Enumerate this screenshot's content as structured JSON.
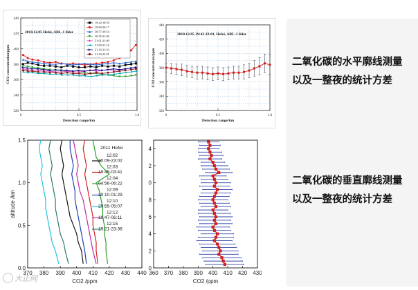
{
  "caption": {
    "top": [
      "二氧化碳的水平廓线测量",
      "以及一整夜的统计方差"
    ],
    "bottom": [
      "二氧化碳的垂直廓线测量",
      "以及一整夜的统计方差"
    ]
  },
  "watermark": "大正网",
  "chart_data": [
    {
      "type": "line",
      "title": "2010.12.05 Hefei, ARL-1 lidar",
      "xlabel": "Detection range/km",
      "ylabel": "CO2 concentration/ppm",
      "xlim": [
        0,
        1.0
      ],
      "ylim": [
        320,
        440
      ],
      "x_ticks": [
        "0",
        "0.5",
        "1.0"
      ],
      "y_ticks": [
        "320",
        "340",
        "360",
        "380",
        "400",
        "420",
        "440"
      ],
      "grid": true,
      "legend_position": "top-right",
      "series": [
        {
          "name": "19:42:18:59",
          "color": "#000000",
          "marker": "square",
          "x": [
            0.02,
            0.06,
            0.1,
            0.15,
            0.2,
            0.25,
            0.3,
            0.35,
            0.4,
            0.45,
            0.5,
            0.55,
            0.6,
            0.65,
            0.7,
            0.75,
            0.8,
            0.85,
            0.9,
            0.95,
            0.99
          ],
          "y": [
            380,
            382,
            381,
            379,
            378,
            378,
            377,
            376,
            378,
            377,
            376,
            376,
            377,
            376,
            378,
            377,
            378,
            377,
            379,
            380,
            381
          ]
        },
        {
          "name": "19:09:20:17",
          "color": "#e41a1c",
          "marker": "circle",
          "x": [
            0.02,
            0.06,
            0.1,
            0.15,
            0.2,
            0.25,
            0.3,
            0.35,
            0.4,
            0.45,
            0.5,
            0.55,
            0.6,
            0.65,
            0.7,
            0.75,
            0.8,
            0.85,
            0.9,
            0.95,
            0.99
          ],
          "y": [
            392,
            388,
            386,
            385,
            383,
            382,
            383,
            381,
            380,
            381,
            380,
            379,
            380,
            381,
            382,
            383,
            385,
            388,
            392,
            398,
            405
          ]
        },
        {
          "name": "20:57:20:54",
          "color": "#1f5fd1",
          "marker": "triangle-up",
          "x": [
            0.02,
            0.06,
            0.1,
            0.15,
            0.2,
            0.25,
            0.3,
            0.35,
            0.4,
            0.45,
            0.5,
            0.55,
            0.6,
            0.65,
            0.7,
            0.75,
            0.8,
            0.85,
            0.9,
            0.95,
            0.99
          ],
          "y": [
            386,
            384,
            383,
            382,
            381,
            380,
            380,
            381,
            380,
            379,
            380,
            381,
            380,
            379,
            380,
            381,
            382,
            381,
            382,
            383,
            384
          ]
        },
        {
          "name": "20:55:21:06",
          "color": "#2ca02c",
          "marker": "triangle-down",
          "x": [
            0.02,
            0.06,
            0.1,
            0.15,
            0.2,
            0.25,
            0.3,
            0.35,
            0.4,
            0.45,
            0.5,
            0.55,
            0.6,
            0.65,
            0.7,
            0.75,
            0.8,
            0.85,
            0.9,
            0.95,
            0.99
          ],
          "y": [
            378,
            377,
            376,
            375,
            374,
            373,
            372,
            372,
            371,
            370,
            370,
            369,
            368,
            368,
            367,
            366,
            365,
            364,
            364,
            365,
            366
          ]
        },
        {
          "name": "21:01:21:09",
          "color": "#d62fb6",
          "marker": "diamond",
          "x": [
            0.02,
            0.06,
            0.1,
            0.15,
            0.2,
            0.25,
            0.3,
            0.35,
            0.4,
            0.45,
            0.5,
            0.55,
            0.6,
            0.65,
            0.7,
            0.75,
            0.8,
            0.85,
            0.9,
            0.95,
            0.99
          ],
          "y": [
            374,
            373,
            372,
            372,
            371,
            371,
            370,
            370,
            371,
            370,
            370,
            371,
            372,
            371,
            372,
            373,
            372,
            373,
            374,
            375,
            376
          ]
        },
        {
          "name": "21:09:21:16",
          "color": "#00a0b0",
          "marker": "triangle-left",
          "x": [
            0.02,
            0.06,
            0.1,
            0.15,
            0.2,
            0.25,
            0.3,
            0.35,
            0.4,
            0.45,
            0.5,
            0.55,
            0.6,
            0.65,
            0.7,
            0.75,
            0.8,
            0.85,
            0.9,
            0.95,
            0.99
          ],
          "y": [
            370,
            369,
            369,
            368,
            368,
            367,
            367,
            366,
            366,
            366,
            365,
            365,
            364,
            365,
            366,
            366,
            367,
            368,
            369,
            370,
            371
          ]
        },
        {
          "name": "21:16:21:43",
          "color": "#000080",
          "marker": "triangle-right",
          "x": [
            0.02,
            0.06,
            0.1,
            0.15,
            0.2,
            0.25,
            0.3,
            0.35,
            0.4,
            0.45,
            0.5,
            0.55,
            0.6,
            0.65,
            0.7,
            0.75,
            0.8,
            0.85,
            0.9,
            0.95,
            0.99
          ],
          "y": [
            376,
            375,
            374,
            374,
            373,
            372,
            373,
            372,
            372,
            371,
            372,
            371,
            372,
            373,
            372,
            373,
            374,
            373,
            374,
            375,
            376
          ]
        },
        {
          "name": "21:43:22:01",
          "color": "#8b1a1a",
          "marker": "circle",
          "x": [
            0.02,
            0.06,
            0.1,
            0.15,
            0.2,
            0.25,
            0.3,
            0.35,
            0.4,
            0.45,
            0.5,
            0.55,
            0.6,
            0.65,
            0.7,
            0.75,
            0.8,
            0.85,
            0.9,
            0.95,
            0.99
          ],
          "y": [
            372,
            371,
            371,
            370,
            370,
            369,
            369,
            368,
            369,
            368,
            368,
            367,
            368,
            369,
            368,
            369,
            370,
            371,
            372,
            373,
            374
          ]
        }
      ]
    },
    {
      "type": "line",
      "title": "2010.12.05 19:42-22:01, Hefei, ARL-1 lidar",
      "xlabel": "Detection range/km",
      "ylabel": "CO2 concentration/ppm",
      "xlim": [
        0,
        1.0
      ],
      "ylim": [
        320,
        440
      ],
      "x_ticks": [
        "0",
        "0.5",
        "1.0"
      ],
      "y_ticks": [
        "320",
        "340",
        "360",
        "380",
        "400",
        "420",
        "440"
      ],
      "grid": true,
      "legend_position": "top-left",
      "series": [
        {
          "name": "",
          "color": "#d21f1f",
          "marker": "square",
          "error_bars": true,
          "x": [
            0.0,
            0.05,
            0.1,
            0.15,
            0.2,
            0.25,
            0.3,
            0.35,
            0.4,
            0.45,
            0.5,
            0.55,
            0.6,
            0.65,
            0.7,
            0.75,
            0.8,
            0.85,
            0.9,
            0.95,
            1.0
          ],
          "y": [
            380,
            379,
            378,
            377,
            375,
            374,
            373,
            373,
            372,
            371,
            372,
            371,
            372,
            373,
            373,
            374,
            376,
            379,
            382,
            386,
            384
          ],
          "err": [
            6,
            7,
            7,
            8,
            8,
            8,
            9,
            9,
            9,
            9,
            9,
            9,
            9,
            9,
            9,
            10,
            10,
            11,
            12,
            13,
            14
          ]
        }
      ]
    },
    {
      "type": "line",
      "title": "",
      "xlabel": "CO2 /ppm",
      "ylabel": "altitude /km",
      "xlim": [
        370,
        440
      ],
      "ylim": [
        0.0,
        1.5
      ],
      "x_ticks": [
        "370",
        "380",
        "390",
        "400",
        "410",
        "420",
        "430",
        "440"
      ],
      "y_ticks": [
        "0.0",
        "0.5",
        "1.0",
        "1.5"
      ],
      "grid": false,
      "legend_position": "top-right",
      "legend_header": "2011 Hefei",
      "series": [
        {
          "name": "12:02 20:09-23:02",
          "color": "#111111",
          "x": [
            391,
            390,
            391,
            392,
            391,
            392,
            393,
            394,
            395,
            396,
            398,
            400,
            401,
            403,
            404
          ],
          "y": [
            1.5,
            1.4,
            1.3,
            1.2,
            1.1,
            1.0,
            0.9,
            0.8,
            0.7,
            0.6,
            0.5,
            0.4,
            0.3,
            0.2,
            0.05
          ]
        },
        {
          "name": "12:03 19:45-03:41",
          "color": "#d21f1f",
          "x": [
            405,
            404,
            405,
            406,
            405,
            406,
            407,
            408,
            409,
            410,
            410,
            411,
            412,
            412,
            413
          ],
          "y": [
            1.5,
            1.4,
            1.3,
            1.2,
            1.1,
            1.0,
            0.9,
            0.8,
            0.7,
            0.6,
            0.5,
            0.4,
            0.3,
            0.2,
            0.05
          ]
        },
        {
          "name": "12:04 04:56-06:22",
          "color": "#2ca02c",
          "x": [
            410,
            411,
            412,
            415,
            420,
            412,
            414,
            415,
            416,
            416,
            417,
            417,
            418,
            418,
            419
          ],
          "y": [
            1.5,
            1.4,
            1.3,
            1.2,
            1.1,
            1.0,
            0.9,
            0.8,
            0.7,
            0.6,
            0.5,
            0.4,
            0.3,
            0.2,
            0.05
          ]
        },
        {
          "name": "12:09 20:10-01:29",
          "color": "#1f3fb0",
          "x": [
            396,
            396,
            397,
            398,
            397,
            398,
            399,
            399,
            400,
            401,
            402,
            403,
            404,
            405,
            406
          ],
          "y": [
            1.5,
            1.4,
            1.3,
            1.2,
            1.1,
            1.0,
            0.9,
            0.8,
            0.7,
            0.6,
            0.5,
            0.4,
            0.3,
            0.2,
            0.05
          ]
        },
        {
          "name": "12:10 20:55-05:07",
          "color": "#20c4e0",
          "x": [
            378,
            377,
            378,
            379,
            378,
            379,
            380,
            381,
            381,
            382,
            383,
            384,
            385,
            387,
            389
          ],
          "y": [
            1.5,
            1.4,
            1.3,
            1.2,
            1.1,
            1.0,
            0.9,
            0.8,
            0.7,
            0.6,
            0.5,
            0.4,
            0.3,
            0.2,
            0.05
          ]
        },
        {
          "name": "12:12 19:47-06:11",
          "color": "#c0289c",
          "x": [
            398,
            399,
            400,
            401,
            400,
            401,
            402,
            404,
            405,
            406,
            407,
            408,
            409,
            410,
            412
          ],
          "y": [
            1.5,
            1.4,
            1.3,
            1.2,
            1.1,
            1.0,
            0.9,
            0.8,
            0.7,
            0.6,
            0.5,
            0.4,
            0.3,
            0.2,
            0.05
          ]
        },
        {
          "name": "12:15 19:21-23:36",
          "color": "#2a7a6a",
          "x": [
            384,
            383,
            384,
            385,
            384,
            385,
            386,
            387,
            387,
            388,
            389,
            390,
            392,
            393,
            395
          ],
          "y": [
            1.5,
            1.4,
            1.3,
            1.2,
            1.1,
            1.0,
            0.9,
            0.8,
            0.7,
            0.6,
            0.5,
            0.4,
            0.3,
            0.2,
            0.05
          ]
        }
      ]
    },
    {
      "type": "line",
      "title": "",
      "xlabel": "CO2 /ppm",
      "ylabel": "",
      "xlim": [
        360,
        430
      ],
      "ylim": [
        0.0,
        1.5
      ],
      "x_ticks": [
        "360",
        "370",
        "380",
        "390",
        "400",
        "410",
        "420",
        "430"
      ],
      "y_ticks": [
        "0.0",
        "0.2",
        "0.4",
        "0.6",
        "0.8",
        "1.0",
        "1.2",
        "1.4"
      ],
      "grid": false,
      "series": [
        {
          "name": "",
          "color": "#d21f1f",
          "marker": "square",
          "error_bars": true,
          "error_axis": "x",
          "y": [
            1.48,
            1.44,
            1.4,
            1.36,
            1.32,
            1.28,
            1.24,
            1.2,
            1.16,
            1.12,
            1.08,
            1.04,
            1.0,
            0.96,
            0.92,
            0.88,
            0.84,
            0.8,
            0.76,
            0.72,
            0.68,
            0.64,
            0.6,
            0.56,
            0.52,
            0.48,
            0.44,
            0.4,
            0.36,
            0.32,
            0.28,
            0.24,
            0.2,
            0.16,
            0.12,
            0.08,
            0.04
          ],
          "x": [
            397,
            398,
            397,
            398,
            399,
            398,
            400,
            401,
            402,
            404,
            400,
            401,
            402,
            401,
            403,
            402,
            401,
            400,
            401,
            402,
            400,
            401,
            402,
            401,
            402,
            400,
            401,
            403,
            402,
            401,
            403,
            404,
            405,
            404,
            406,
            407,
            408
          ],
          "err": [
            7,
            7,
            7,
            8,
            8,
            8,
            8,
            9,
            9,
            9,
            9,
            9,
            10,
            10,
            10,
            10,
            10,
            10,
            10,
            10,
            10,
            11,
            11,
            11,
            11,
            11,
            11,
            11,
            12,
            12,
            12,
            12,
            12,
            13,
            13,
            13,
            13
          ]
        }
      ]
    }
  ]
}
